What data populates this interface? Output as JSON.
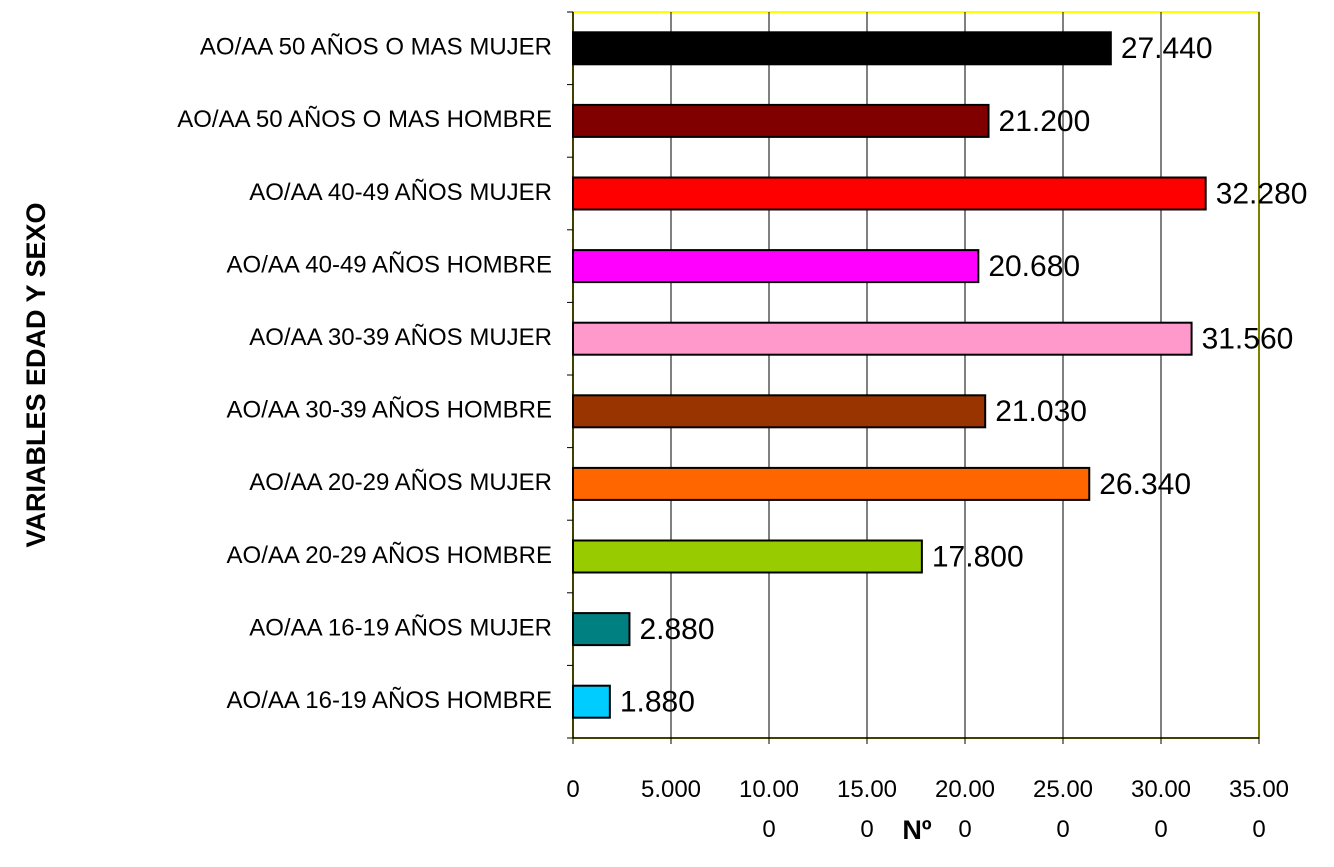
{
  "chart_data": {
    "type": "bar",
    "orientation": "horizontal",
    "y_label": "VARIABLES EDAD Y SEXO",
    "x_label": "Nº",
    "categories": [
      "AO/AA 50 AÑOS O MAS MUJER",
      "AO/AA 50 AÑOS O MAS HOMBRE",
      "AO/AA 40-49 AÑOS MUJER",
      "AO/AA 40-49 AÑOS HOMBRE",
      "AO/AA 30-39 AÑOS MUJER",
      "AO/AA 30-39 AÑOS HOMBRE",
      "AO/AA 20-29 AÑOS MUJER",
      "AO/AA 20-29 AÑOS HOMBRE",
      "AO/AA 16-19 AÑOS MUJER",
      "AO/AA 16-19 AÑOS HOMBRE"
    ],
    "values": [
      27440,
      21200,
      32280,
      20680,
      31560,
      21030,
      26340,
      17800,
      2880,
      1880
    ],
    "value_labels": [
      "27.440",
      "21.200",
      "32.280",
      "20.680",
      "31.560",
      "21.030",
      "26.340",
      "17.800",
      "2.880",
      "1.880"
    ],
    "colors": [
      "#000000",
      "#800000",
      "#ff0000",
      "#ff00ff",
      "#ff99cc",
      "#993300",
      "#ff6600",
      "#99cc00",
      "#008080",
      "#00ccff"
    ],
    "xlim": [
      0,
      35000
    ],
    "xticks": [
      0,
      {
        "value": 5000,
        "label": "5.000"
      },
      {
        "value": 10000,
        "label": "10.000"
      },
      {
        "value": 15000,
        "label": "15.000"
      },
      {
        "value": 20000,
        "label": "20.000"
      },
      {
        "value": 25000,
        "label": "25.000"
      },
      {
        "value": 30000,
        "label": "30.000"
      },
      {
        "value": 35000,
        "label": "35.000"
      }
    ],
    "grid": true
  }
}
